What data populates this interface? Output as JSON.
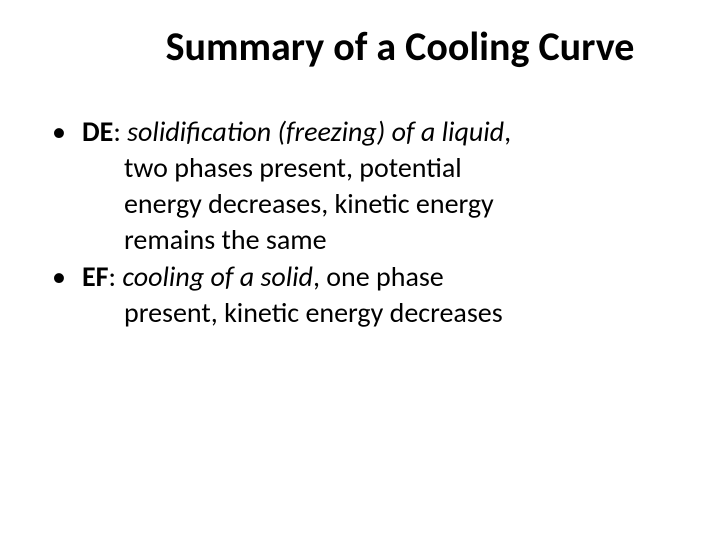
{
  "title": "Summary of a Cooling Curve",
  "bullets": [
    {
      "label": "DE",
      "phase": "solidification (freezing) of a liquid",
      "cont": [
        "two phases present, potential",
        "energy decreases, kinetic energy",
        "remains the same"
      ]
    },
    {
      "label": "EF",
      "phase": "cooling of a solid",
      "tail": ", one phase",
      "cont": [
        "present, kinetic energy decreases"
      ]
    }
  ],
  "bullet_char": "•",
  "colors": {
    "text": "#000000",
    "background": "#ffffff"
  },
  "fontsizes": {
    "title": 40,
    "body": 28
  }
}
